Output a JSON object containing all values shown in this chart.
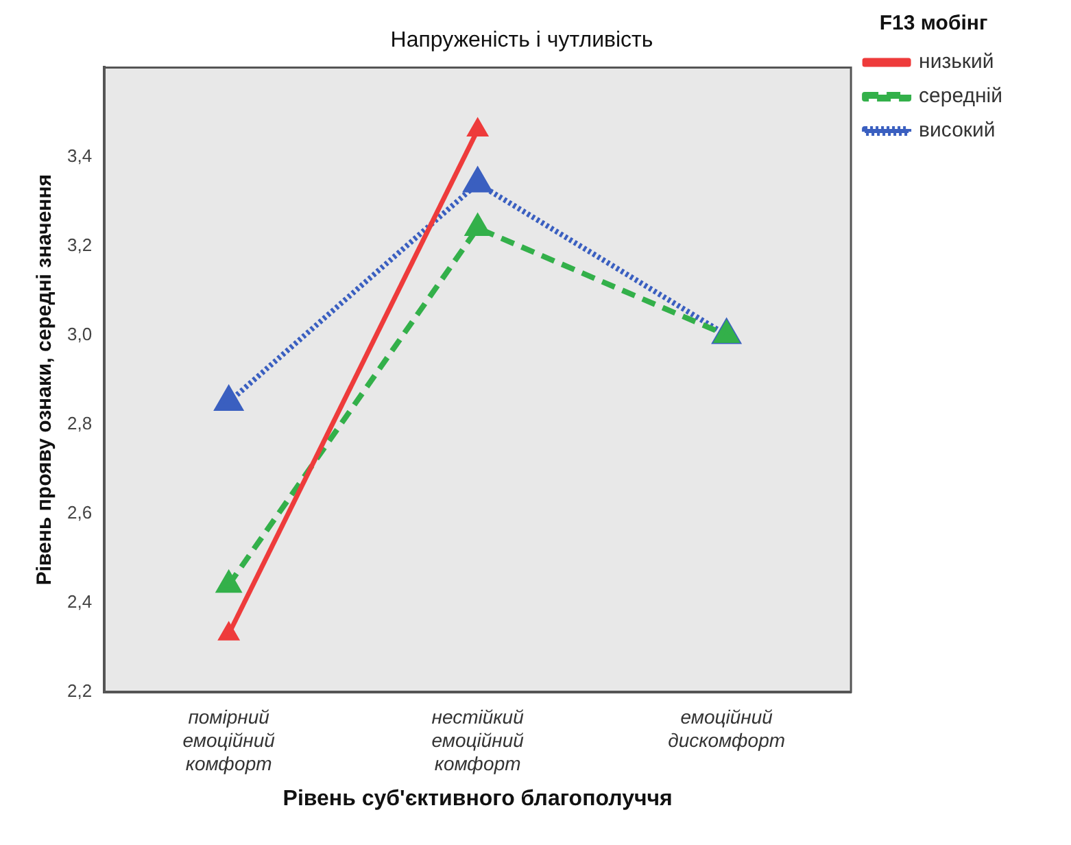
{
  "chart_data": {
    "type": "line",
    "title": "Напруженість і чутливість",
    "xlabel": "Рівень суб'єктивного благополуччя",
    "ylabel": "Рівень прояву ознаки, середні значення",
    "legend_title": "F13 мобінг",
    "categories": [
      "помірний емоційний комфорт",
      "нестійкий емоційний комфорт",
      "емоційний дискомфорт"
    ],
    "series": [
      {
        "name": "низький",
        "color": "#ee3b3b",
        "line_style": "solid",
        "values": [
          2.33,
          3.46,
          null
        ]
      },
      {
        "name": "середній",
        "color": "#33b04a",
        "line_style": "dashed",
        "values": [
          2.44,
          3.24,
          3.0
        ]
      },
      {
        "name": "високий",
        "color": "#3a5fc0",
        "line_style": "dotted",
        "values": [
          2.85,
          3.34,
          3.0
        ]
      }
    ],
    "ylim": [
      2.2,
      3.6
    ],
    "yticks": [
      {
        "value": 2.2,
        "label": "2,2"
      },
      {
        "value": 2.4,
        "label": "2,4"
      },
      {
        "value": 2.6,
        "label": "2,6"
      },
      {
        "value": 2.8,
        "label": "2,8"
      },
      {
        "value": 3.0,
        "label": "3,0"
      },
      {
        "value": 3.2,
        "label": "3,2"
      },
      {
        "value": 3.4,
        "label": "3,4"
      }
    ],
    "marker": "triangle",
    "grid": false,
    "legend": "top right"
  }
}
